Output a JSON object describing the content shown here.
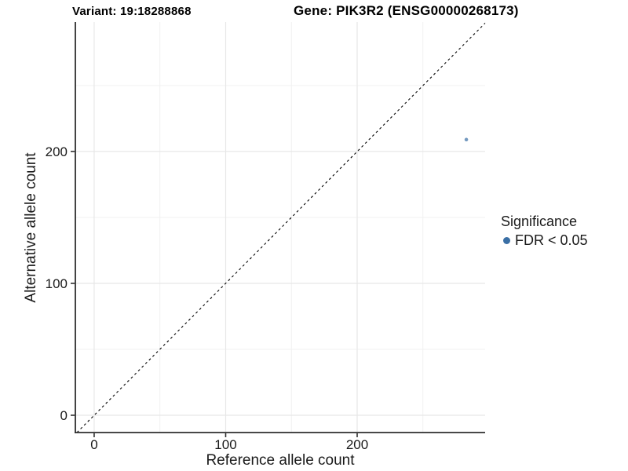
{
  "chart_data": {
    "type": "scatter",
    "title_left": "Variant: 19:18288868",
    "title_right": "Gene: PIK3R2 (ENSG00000268173)",
    "xlabel": "Reference allele count",
    "ylabel": "Alternative allele count",
    "xlim": [
      -14.3,
      297.3
    ],
    "ylim": [
      -13.1,
      298.2
    ],
    "x_major_ticks": [
      0,
      100,
      200
    ],
    "x_minor_ticks": [
      50,
      150,
      250
    ],
    "y_major_ticks": [
      0,
      100,
      200
    ],
    "y_minor_ticks": [
      50,
      150,
      250
    ],
    "grid": true,
    "identity_line": {
      "style": "dashed",
      "slope": 1,
      "intercept": 0,
      "color": "#000000"
    },
    "series": [
      {
        "name": "FDR < 0.05",
        "color": "#3a6fa5",
        "opacity": 0.7,
        "points": [
          {
            "x": 283,
            "y": 209
          }
        ]
      }
    ],
    "legend": {
      "position": "right",
      "title": "Significance",
      "items": [
        {
          "label": "FDR < 0.05",
          "color": "#3a6fa5"
        }
      ]
    },
    "colors": {
      "axis": "#2e2e2e",
      "grid_major": "#e7e7e7",
      "grid_minor": "#f1f1f1",
      "tick_text": "#1a1a1a"
    }
  }
}
